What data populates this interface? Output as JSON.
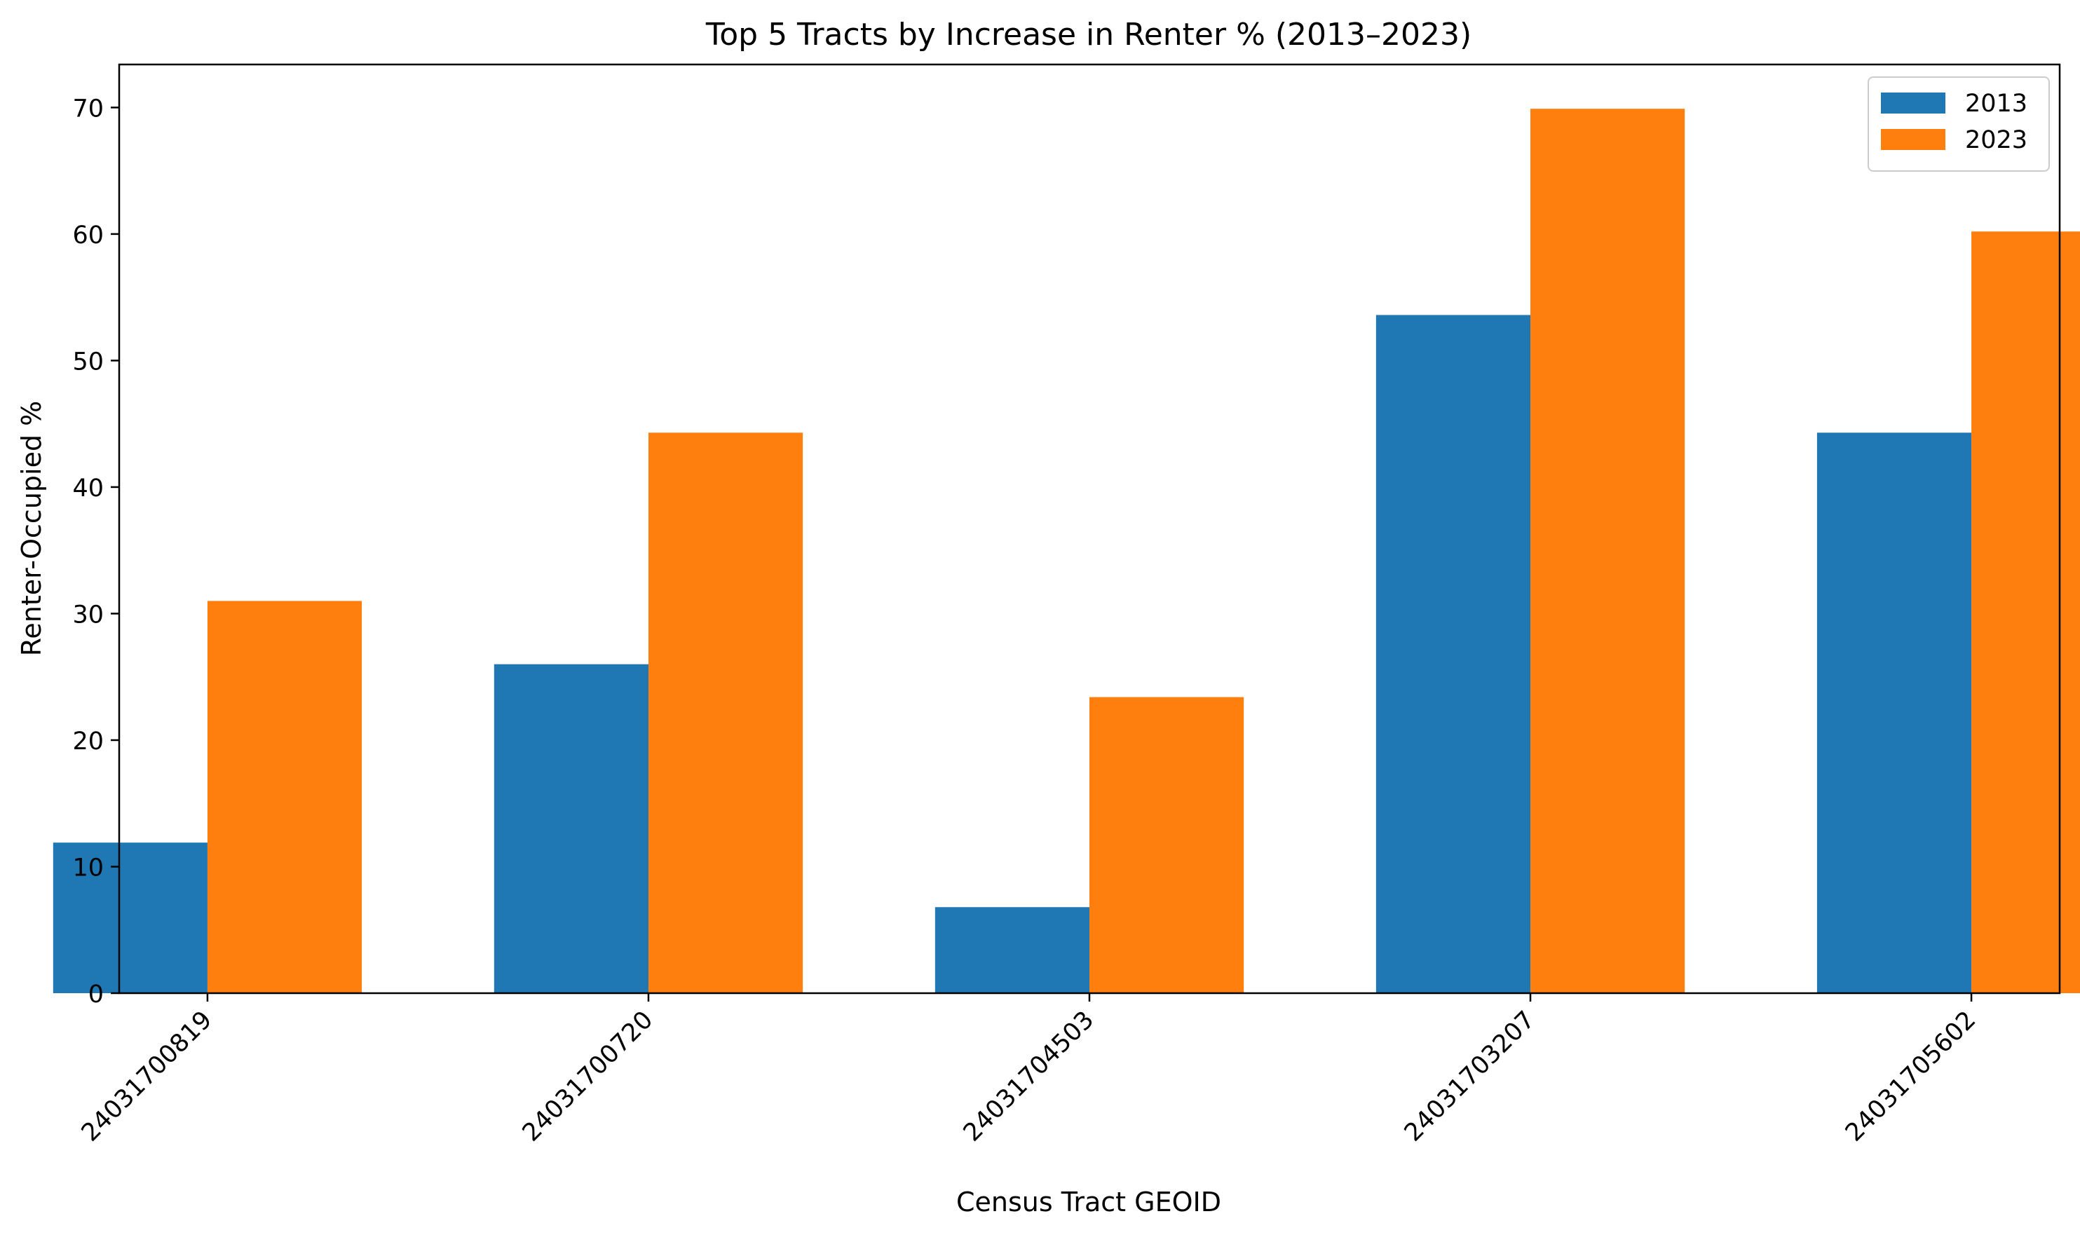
{
  "chart_data": {
    "type": "bar",
    "title": "Top 5 Tracts by Increase in Renter % (2013–2023)",
    "xlabel": "Census Tract GEOID",
    "ylabel": "Renter-Occupied %",
    "categories": [
      "24031700819",
      "24031700720",
      "24031704503",
      "24031703207",
      "24031705602"
    ],
    "series": [
      {
        "name": "2013",
        "color": "#1f77b4",
        "values": [
          11.9,
          26.0,
          6.8,
          53.6,
          44.3
        ]
      },
      {
        "name": "2023",
        "color": "#ff7f0e",
        "values": [
          31.0,
          44.3,
          23.4,
          69.9,
          60.2
        ]
      }
    ],
    "ylim": [
      0,
      73.4
    ],
    "yticks": [
      0,
      10,
      20,
      30,
      40,
      50,
      60,
      70
    ],
    "grid": false,
    "legend_position": "top-right"
  }
}
